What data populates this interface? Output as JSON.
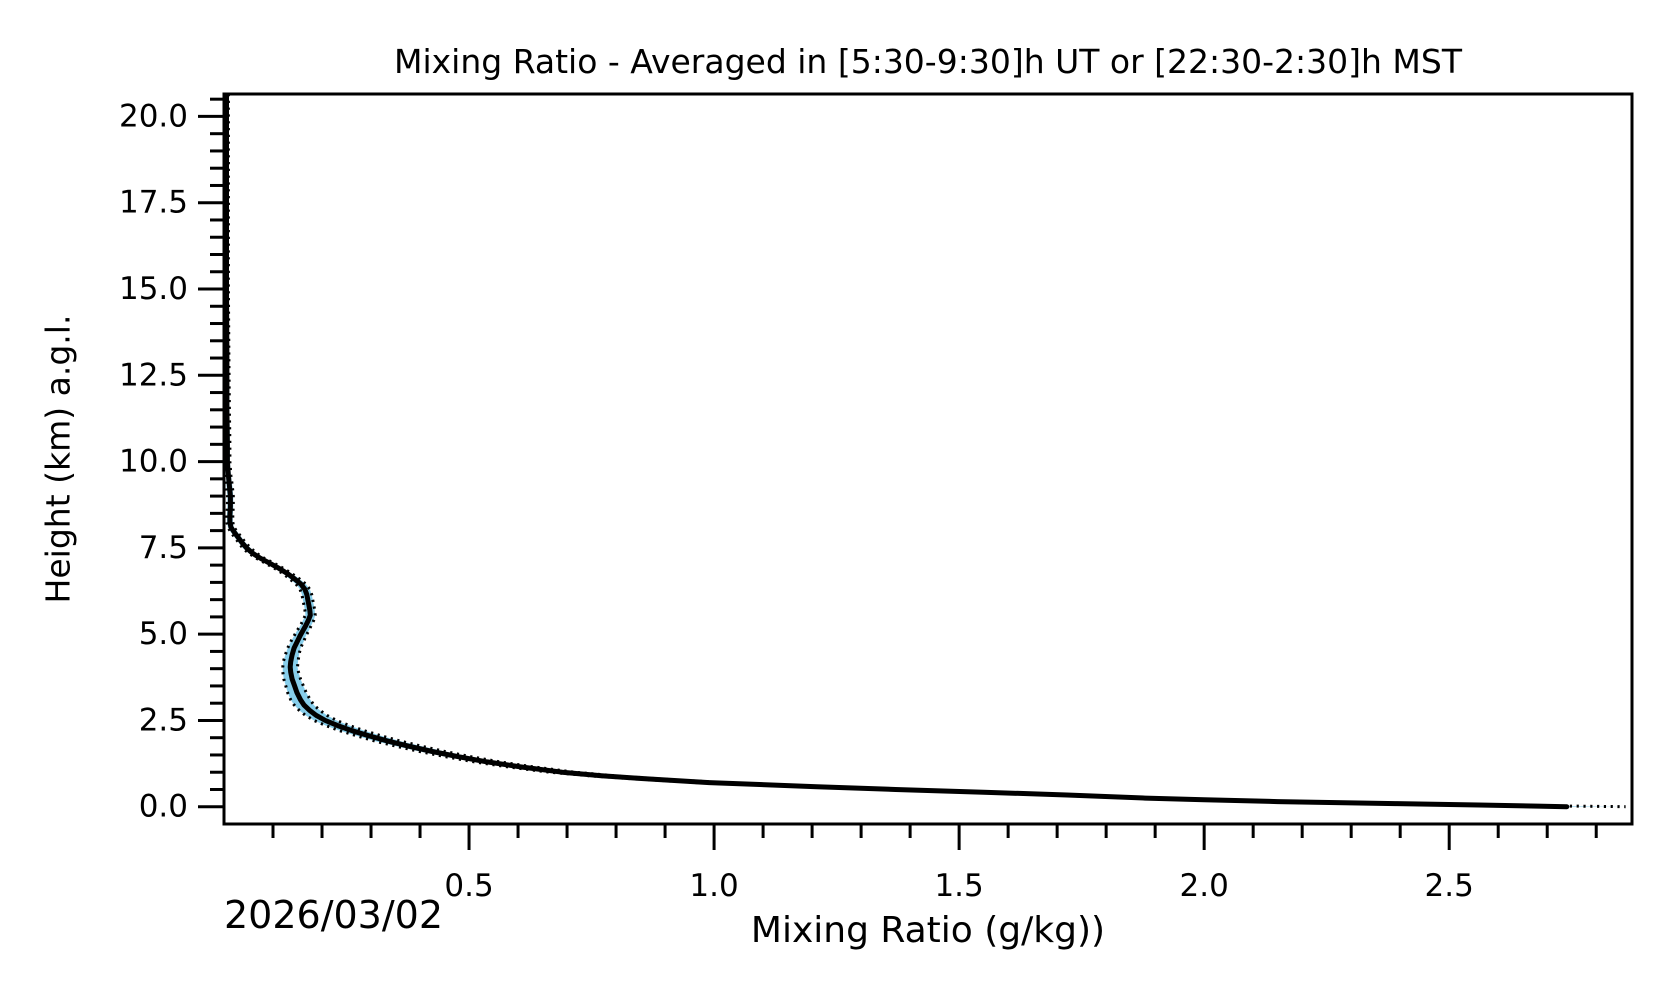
{
  "figure": {
    "title": "Mixing Ratio - Averaged in [5:30-9:30]h UT or [22:30-2:30]h MST",
    "date_label": "2026/03/02"
  },
  "colors": {
    "band_fill": "#87ceeb",
    "band_edge": "#000000",
    "mean_line": "#000000",
    "axis": "#000000",
    "text": "#000000",
    "background": "#ffffff"
  },
  "chart_data": {
    "type": "line",
    "title": "Mixing Ratio - Averaged in [5:30-9:30]h UT or [22:30-2:30]h MST",
    "xlabel": "Mixing Ratio (g/kg))",
    "ylabel": "Height (km) a.g.l.",
    "date_annotation": "2026/03/02",
    "xlim": [
      0.0,
      2.873
    ],
    "ylim": [
      -0.5,
      20.65
    ],
    "x_major_ticks": [
      0.5,
      1.0,
      1.5,
      2.0,
      2.5
    ],
    "x_major_tick_labels": [
      "0.5",
      "1.0",
      "1.5",
      "2.0",
      "2.5"
    ],
    "x_minor_tick_step": 0.1,
    "y_major_ticks": [
      0.0,
      2.5,
      5.0,
      7.5,
      10.0,
      12.5,
      15.0,
      17.5,
      20.0
    ],
    "y_major_tick_labels": [
      "0.0",
      "2.5",
      "5.0",
      "7.5",
      "10.0",
      "12.5",
      "15.0",
      "17.5",
      "20.0"
    ],
    "y_minor_tick_step": 0.5,
    "grid": false,
    "legend": "none",
    "series": [
      {
        "name": "mean mixing ratio profile with shaded uncertainty band (dotted edges)",
        "columns": [
          "height_km",
          "mixing_ratio_g_per_kg",
          "band_halfwidth_g_per_kg"
        ],
        "rows": [
          [
            20.65,
            0.005,
            0.004
          ],
          [
            18.0,
            0.005,
            0.004
          ],
          [
            15.0,
            0.005,
            0.004
          ],
          [
            13.0,
            0.006,
            0.004
          ],
          [
            11.5,
            0.006,
            0.005
          ],
          [
            10.5,
            0.007,
            0.005
          ],
          [
            10.0,
            0.007,
            0.005
          ],
          [
            9.6,
            0.009,
            0.005
          ],
          [
            9.3,
            0.011,
            0.006
          ],
          [
            9.0,
            0.013,
            0.006
          ],
          [
            8.7,
            0.013,
            0.006
          ],
          [
            8.45,
            0.012,
            0.006
          ],
          [
            8.25,
            0.012,
            0.006
          ],
          [
            8.1,
            0.014,
            0.006
          ],
          [
            7.95,
            0.021,
            0.007
          ],
          [
            7.8,
            0.029,
            0.007
          ],
          [
            7.65,
            0.037,
            0.007
          ],
          [
            7.5,
            0.046,
            0.008
          ],
          [
            7.35,
            0.058,
            0.008
          ],
          [
            7.2,
            0.074,
            0.008
          ],
          [
            7.05,
            0.094,
            0.009
          ],
          [
            6.9,
            0.113,
            0.009
          ],
          [
            6.75,
            0.13,
            0.009
          ],
          [
            6.6,
            0.144,
            0.01
          ],
          [
            6.45,
            0.157,
            0.01
          ],
          [
            6.3,
            0.165,
            0.01
          ],
          [
            6.15,
            0.169,
            0.01
          ],
          [
            6.0,
            0.171,
            0.01
          ],
          [
            5.85,
            0.173,
            0.01
          ],
          [
            5.7,
            0.175,
            0.01
          ],
          [
            5.55,
            0.176,
            0.01
          ],
          [
            5.4,
            0.172,
            0.011
          ],
          [
            5.25,
            0.167,
            0.011
          ],
          [
            5.1,
            0.161,
            0.012
          ],
          [
            4.95,
            0.155,
            0.012
          ],
          [
            4.8,
            0.15,
            0.013
          ],
          [
            4.6,
            0.143,
            0.013
          ],
          [
            4.4,
            0.139,
            0.014
          ],
          [
            4.2,
            0.136,
            0.015
          ],
          [
            4.05,
            0.135,
            0.015
          ],
          [
            3.9,
            0.136,
            0.016
          ],
          [
            3.7,
            0.139,
            0.017
          ],
          [
            3.5,
            0.144,
            0.018
          ],
          [
            3.3,
            0.149,
            0.019
          ],
          [
            3.1,
            0.156,
            0.02
          ],
          [
            2.95,
            0.163,
            0.02
          ],
          [
            2.8,
            0.174,
            0.021
          ],
          [
            2.65,
            0.188,
            0.022
          ],
          [
            2.5,
            0.207,
            0.023
          ],
          [
            2.35,
            0.232,
            0.024
          ],
          [
            2.2,
            0.262,
            0.025
          ],
          [
            2.05,
            0.297,
            0.025
          ],
          [
            1.9,
            0.335,
            0.026
          ],
          [
            1.75,
            0.378,
            0.026
          ],
          [
            1.6,
            0.425,
            0.026
          ],
          [
            1.45,
            0.478,
            0.026
          ],
          [
            1.3,
            0.537,
            0.026
          ],
          [
            1.15,
            0.607,
            0.026
          ],
          [
            1.0,
            0.69,
            0.026
          ],
          [
            0.9,
            0.77,
            0.026
          ],
          [
            0.81,
            0.86,
            0.026
          ],
          [
            0.7,
            0.99,
            0.027
          ],
          [
            0.58,
            1.21,
            0.027
          ],
          [
            0.5,
            1.37,
            0.028
          ],
          [
            0.42,
            1.55,
            0.029
          ],
          [
            0.34,
            1.72,
            0.031
          ],
          [
            0.25,
            1.88,
            0.033
          ],
          [
            0.2,
            2.0,
            0.035
          ],
          [
            0.15,
            2.15,
            0.037
          ],
          [
            0.09,
            2.39,
            0.04
          ],
          [
            0.05,
            2.56,
            0.05
          ],
          [
            0.02,
            2.68,
            0.07
          ],
          [
            0.0,
            2.74,
            0.12
          ]
        ]
      }
    ]
  }
}
